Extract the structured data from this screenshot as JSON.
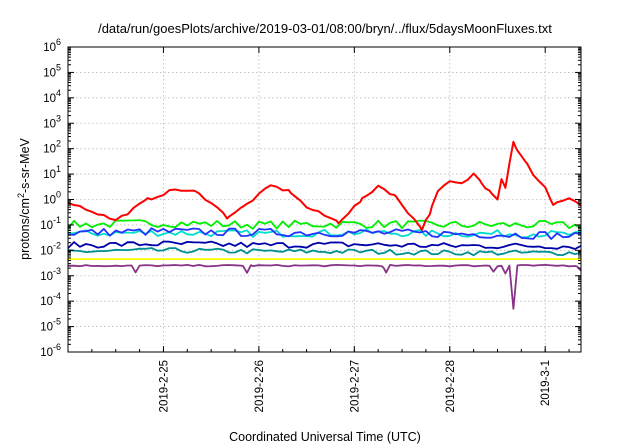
{
  "chart_data": {
    "type": "line",
    "title": "/data/run/goesPlots/archive/2019-03-01/08:00/bryn/../flux/5daysMoonFluxes.txt",
    "xlabel": "Coordinated Universal Time (UTC)",
    "ylabel_parts": {
      "a": "protons/cm",
      "sup": "2",
      "b": "-s-sr-MeV"
    },
    "y_scale": "log",
    "ylim": [
      1e-06,
      1000000.0
    ],
    "y_ticks": [
      {
        "value": 1e-06,
        "base": "10",
        "exp": "-6"
      },
      {
        "value": 1e-05,
        "base": "10",
        "exp": "-5"
      },
      {
        "value": 0.0001,
        "base": "10",
        "exp": "-4"
      },
      {
        "value": 0.001,
        "base": "10",
        "exp": "-3"
      },
      {
        "value": 0.01,
        "base": "10",
        "exp": "-2"
      },
      {
        "value": 0.1,
        "base": "10",
        "exp": "-1"
      },
      {
        "value": 1,
        "base": "10",
        "exp": "0"
      },
      {
        "value": 10,
        "base": "10",
        "exp": "1"
      },
      {
        "value": 100,
        "base": "10",
        "exp": "2"
      },
      {
        "value": 1000,
        "base": "10",
        "exp": "3"
      },
      {
        "value": 10000,
        "base": "10",
        "exp": "4"
      },
      {
        "value": 100000,
        "base": "10",
        "exp": "5"
      },
      {
        "value": 1000000,
        "base": "10",
        "exp": "6"
      }
    ],
    "x_range": [
      "2019-02-24 00:00",
      "2019-03-01 09:00"
    ],
    "x_ticks": [
      {
        "time": "2019-02-25 00:00",
        "label": "2019-2-25"
      },
      {
        "time": "2019-02-26 00:00",
        "label": "2019-2-26"
      },
      {
        "time": "2019-02-27 00:00",
        "label": "2019-2-27"
      },
      {
        "time": "2019-02-28 00:00",
        "label": "2019-2-28"
      },
      {
        "time": "2019-03-01 00:00",
        "label": "2019-3-1"
      }
    ],
    "grid": true,
    "series": [
      {
        "color": "#ff0000",
        "x": [
          "2019-02-24 00:00",
          "2019-02-24 06:00",
          "2019-02-24 12:00",
          "2019-02-24 15:00",
          "2019-02-24 20:00",
          "2019-02-25 03:00",
          "2019-02-25 08:00",
          "2019-02-25 12:00",
          "2019-02-25 16:00",
          "2019-02-25 20:00",
          "2019-02-26 03:00",
          "2019-02-26 08:00",
          "2019-02-26 12:00",
          "2019-02-26 20:00",
          "2019-02-27 02:00",
          "2019-02-27 06:00",
          "2019-02-27 10:00",
          "2019-02-27 13:00",
          "2019-02-27 17:00",
          "2019-02-27 19:00",
          "2019-02-27 21:00",
          "2019-02-28 00:00",
          "2019-02-28 03:00",
          "2019-02-28 06:00",
          "2019-02-28 08:00",
          "2019-02-28 09:00",
          "2019-02-28 10:00",
          "2019-02-28 12:00",
          "2019-02-28 13:00",
          "2019-02-28 14:00",
          "2019-02-28 16:00",
          "2019-02-28 17:00",
          "2019-02-28 19:00",
          "2019-02-28 21:00",
          "2019-03-01 00:00",
          "2019-03-01 02:00",
          "2019-03-01 03:00",
          "2019-03-01 06:00",
          "2019-03-01 09:00"
        ],
        "y": [
          0.8,
          0.35,
          0.15,
          0.3,
          1,
          2.5,
          2,
          0.8,
          0.2,
          0.5,
          3.5,
          2,
          0.5,
          0.13,
          1,
          3.5,
          1.5,
          0.4,
          0.07,
          0.3,
          2,
          5,
          4,
          10,
          5,
          3,
          2.5,
          1,
          7,
          3,
          200,
          80,
          30,
          10,
          3,
          0.6,
          0.8,
          1,
          0.6
        ]
      },
      {
        "color": "#00ee00",
        "x": [
          "2019-02-24 00:00",
          "2019-02-25 00:00",
          "2019-02-26 00:00",
          "2019-02-27 00:00",
          "2019-02-28 00:00",
          "2019-03-01 00:00",
          "2019-03-01 09:00"
        ],
        "y": [
          0.1,
          0.12,
          0.1,
          0.11,
          0.1,
          0.1,
          0.09
        ]
      },
      {
        "color": "#00ddcc",
        "x": [
          "2019-02-24 00:00",
          "2019-02-25 00:00",
          "2019-02-26 00:00",
          "2019-02-27 00:00",
          "2019-02-28 00:00",
          "2019-03-01 00:00",
          "2019-03-01 09:00"
        ],
        "y": [
          0.045,
          0.05,
          0.045,
          0.05,
          0.045,
          0.045,
          0.04
        ]
      },
      {
        "color": "#2233ff",
        "x": [
          "2019-02-24 00:00",
          "2019-02-25 00:00",
          "2019-02-26 00:00",
          "2019-02-27 00:00",
          "2019-02-28 00:00",
          "2019-03-01 00:00",
          "2019-03-01 09:00"
        ],
        "y": [
          0.05,
          0.055,
          0.05,
          0.05,
          0.045,
          0.04,
          0.035
        ]
      },
      {
        "color": "#0000aa",
        "x": [
          "2019-02-24 00:00",
          "2019-02-25 00:00",
          "2019-02-26 00:00",
          "2019-02-27 00:00",
          "2019-02-28 00:00",
          "2019-03-01 00:00",
          "2019-03-01 09:00"
        ],
        "y": [
          0.016,
          0.018,
          0.016,
          0.017,
          0.015,
          0.015,
          0.014
        ]
      },
      {
        "color": "#009090",
        "x": [
          "2019-02-24 00:00",
          "2019-02-25 00:00",
          "2019-02-26 00:00",
          "2019-02-27 00:00",
          "2019-02-28 00:00",
          "2019-03-01 00:00",
          "2019-03-01 09:00"
        ],
        "y": [
          0.009,
          0.01,
          0.009,
          0.009,
          0.008,
          0.008,
          0.008
        ]
      },
      {
        "color": "#ffff00",
        "x": [
          "2019-02-24 00:00",
          "2019-02-25 00:00",
          "2019-02-26 00:00",
          "2019-02-27 00:00",
          "2019-02-28 00:00",
          "2019-03-01 00:00",
          "2019-03-01 09:00"
        ],
        "y": [
          0.0045,
          0.0045,
          0.0045,
          0.0045,
          0.0045,
          0.0045,
          0.0045
        ]
      },
      {
        "color": "#883388",
        "x": [
          "2019-02-24 00:00",
          "2019-02-24 16:00",
          "2019-02-24 17:00",
          "2019-02-24 18:00",
          "2019-02-25 20:00",
          "2019-02-25 21:00",
          "2019-02-25 22:00",
          "2019-02-27 07:00",
          "2019-02-27 08:00",
          "2019-02-27 09:00",
          "2019-02-28 10:00",
          "2019-02-28 11:00",
          "2019-02-28 12:00",
          "2019-02-28 13:00",
          "2019-02-28 14:00",
          "2019-02-28 15:00",
          "2019-02-28 16:00",
          "2019-02-28 17:00",
          "2019-02-28 18:00",
          "2019-03-01 08:00",
          "2019-03-01 09:00"
        ],
        "y": [
          0.0025,
          0.0025,
          0.0013,
          0.0025,
          0.0025,
          0.0013,
          0.0025,
          0.0025,
          0.0013,
          0.0025,
          0.0025,
          0.0015,
          0.0025,
          0.0025,
          0.0012,
          0.0025,
          5e-05,
          0.0025,
          0.0025,
          0.0025,
          0.0015
        ]
      }
    ]
  }
}
